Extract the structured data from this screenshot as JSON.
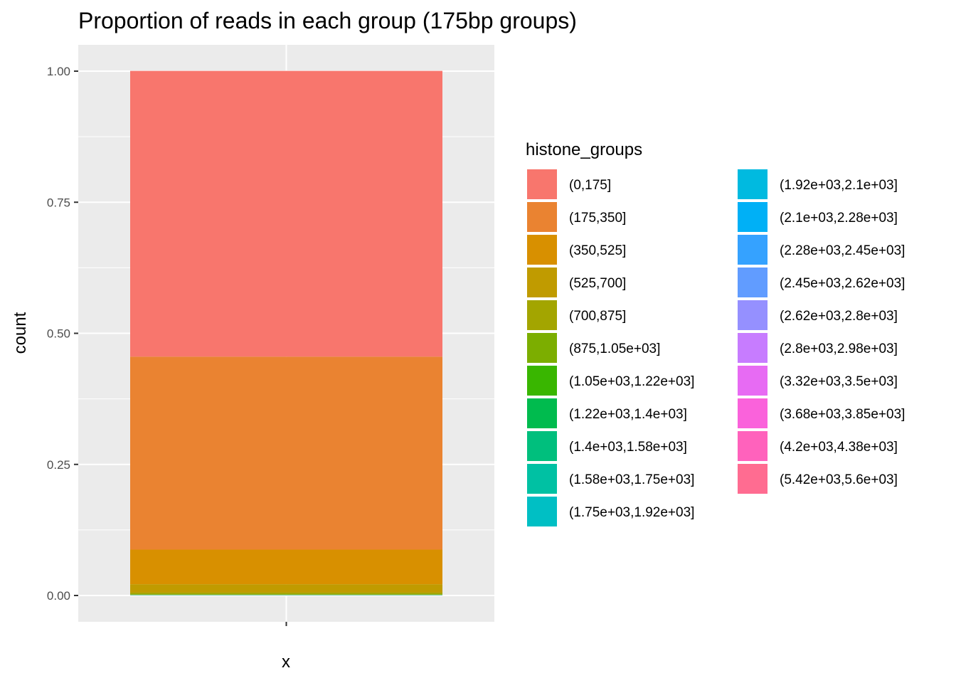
{
  "chart_data": {
    "type": "bar",
    "stacked": true,
    "title": "Proportion of reads in each group (175bp groups)",
    "xlabel": "x",
    "ylabel": "count",
    "ylim": [
      0,
      1
    ],
    "yticks": [
      "0.00",
      "0.25",
      "0.50",
      "0.75",
      "1.00"
    ],
    "ytick_values": [
      0,
      0.25,
      0.5,
      0.75,
      1.0
    ],
    "categories": [
      ""
    ],
    "grid": true,
    "legend_position": "right",
    "legend_title": "histone_groups",
    "series": [
      {
        "name": "(0,175]",
        "color": "#F8766D",
        "values": [
          0.545
        ]
      },
      {
        "name": "(175,350]",
        "color": "#EA8331",
        "values": [
          0.368
        ]
      },
      {
        "name": "(350,525]",
        "color": "#D89000",
        "values": [
          0.066
        ]
      },
      {
        "name": "(525,700]",
        "color": "#C09B00",
        "values": [
          0.016
        ]
      },
      {
        "name": "(700,875]",
        "color": "#A3A500",
        "values": [
          0.003
        ]
      },
      {
        "name": "(875,1.05e+03]",
        "color": "#7CAE00",
        "values": [
          0.001
        ]
      },
      {
        "name": "(1.05e+03,1.22e+03]",
        "color": "#39B600",
        "values": [
          0.0005
        ]
      },
      {
        "name": "(1.22e+03,1.4e+03]",
        "color": "#00BB4E",
        "values": [
          0.0002
        ]
      },
      {
        "name": "(1.4e+03,1.58e+03]",
        "color": "#00BF7D",
        "values": [
          0.0001
        ]
      },
      {
        "name": "(1.58e+03,1.75e+03]",
        "color": "#00C1A3",
        "values": [
          0.0001
        ]
      },
      {
        "name": "(1.75e+03,1.92e+03]",
        "color": "#00BFC4",
        "values": [
          0.0001
        ]
      },
      {
        "name": "(1.92e+03,2.1e+03]",
        "color": "#00BAE0",
        "values": [
          5e-05
        ]
      },
      {
        "name": "(2.1e+03,2.28e+03]",
        "color": "#00B0F6",
        "values": [
          5e-05
        ]
      },
      {
        "name": "(2.28e+03,2.45e+03]",
        "color": "#35A2FF",
        "values": [
          5e-05
        ]
      },
      {
        "name": "(2.45e+03,2.62e+03]",
        "color": "#619CFF",
        "values": [
          5e-05
        ]
      },
      {
        "name": "(2.62e+03,2.8e+03]",
        "color": "#9590FF",
        "values": [
          5e-05
        ]
      },
      {
        "name": "(2.8e+03,2.98e+03]",
        "color": "#C77CFF",
        "values": [
          5e-05
        ]
      },
      {
        "name": "(3.32e+03,3.5e+03]",
        "color": "#E76BF3",
        "values": [
          5e-05
        ]
      },
      {
        "name": "(3.68e+03,3.85e+03]",
        "color": "#FA62DB",
        "values": [
          5e-05
        ]
      },
      {
        "name": "(4.2e+03,4.38e+03]",
        "color": "#FF62BC",
        "values": [
          5e-05
        ]
      },
      {
        "name": "(5.42e+03,5.6e+03]",
        "color": "#FF6C91",
        "values": [
          5e-05
        ]
      }
    ]
  }
}
